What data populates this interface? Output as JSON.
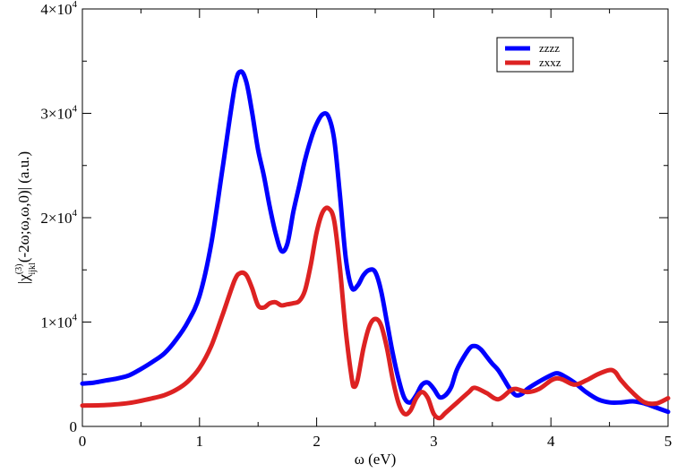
{
  "chart_data": {
    "type": "line",
    "title": "",
    "xlabel": "ω (eV)",
    "ylabel": "|χ(3)ijkl(-2ω;ω,ω,0)| (a.u.)",
    "xlim": [
      0,
      5
    ],
    "ylim": [
      0,
      40000
    ],
    "xticks": [
      0,
      1,
      2,
      3,
      4,
      5
    ],
    "xtick_labels": [
      "0",
      "1",
      "2",
      "3",
      "4",
      "5"
    ],
    "yticks": [
      0,
      10000,
      20000,
      30000,
      40000
    ],
    "ytick_labels": [
      {
        "mant": "0",
        "exp": ""
      },
      {
        "mant": "1×10",
        "exp": "4"
      },
      {
        "mant": "2×10",
        "exp": "4"
      },
      {
        "mant": "3×10",
        "exp": "4"
      },
      {
        "mant": "4×10",
        "exp": "4"
      }
    ],
    "grid": false,
    "legend_position": "top-right",
    "series": [
      {
        "name": "zzzz",
        "color": "#0000ff",
        "points": [
          [
            0,
            4100
          ],
          [
            0.1,
            4200
          ],
          [
            0.2,
            4400
          ],
          [
            0.3,
            4600
          ],
          [
            0.4,
            4900
          ],
          [
            0.5,
            5500
          ],
          [
            0.6,
            6200
          ],
          [
            0.7,
            7000
          ],
          [
            0.8,
            8300
          ],
          [
            0.9,
            10000
          ],
          [
            1.0,
            12500
          ],
          [
            1.1,
            17500
          ],
          [
            1.2,
            25000
          ],
          [
            1.3,
            32500
          ],
          [
            1.35,
            34000
          ],
          [
            1.4,
            33000
          ],
          [
            1.45,
            30000
          ],
          [
            1.5,
            26500
          ],
          [
            1.55,
            24000
          ],
          [
            1.6,
            21000
          ],
          [
            1.65,
            18500
          ],
          [
            1.7,
            16800
          ],
          [
            1.75,
            17500
          ],
          [
            1.8,
            20500
          ],
          [
            1.85,
            23000
          ],
          [
            1.9,
            25500
          ],
          [
            1.95,
            27500
          ],
          [
            2.0,
            29000
          ],
          [
            2.05,
            29900
          ],
          [
            2.1,
            29700
          ],
          [
            2.15,
            27500
          ],
          [
            2.2,
            22000
          ],
          [
            2.25,
            16000
          ],
          [
            2.3,
            13300
          ],
          [
            2.35,
            13500
          ],
          [
            2.4,
            14500
          ],
          [
            2.45,
            15000
          ],
          [
            2.5,
            14800
          ],
          [
            2.55,
            13000
          ],
          [
            2.6,
            10000
          ],
          [
            2.65,
            7000
          ],
          [
            2.7,
            4500
          ],
          [
            2.75,
            2700
          ],
          [
            2.8,
            2300
          ],
          [
            2.85,
            3000
          ],
          [
            2.9,
            4000
          ],
          [
            2.95,
            4200
          ],
          [
            3.0,
            3600
          ],
          [
            3.05,
            2800
          ],
          [
            3.1,
            3000
          ],
          [
            3.15,
            3800
          ],
          [
            3.2,
            5500
          ],
          [
            3.3,
            7400
          ],
          [
            3.35,
            7700
          ],
          [
            3.4,
            7400
          ],
          [
            3.45,
            6700
          ],
          [
            3.5,
            6000
          ],
          [
            3.55,
            5400
          ],
          [
            3.6,
            4500
          ],
          [
            3.65,
            3600
          ],
          [
            3.7,
            3000
          ],
          [
            3.75,
            3100
          ],
          [
            3.8,
            3600
          ],
          [
            3.9,
            4300
          ],
          [
            4.0,
            4900
          ],
          [
            4.05,
            5100
          ],
          [
            4.1,
            4900
          ],
          [
            4.2,
            4200
          ],
          [
            4.3,
            3300
          ],
          [
            4.4,
            2600
          ],
          [
            4.5,
            2300
          ],
          [
            4.6,
            2300
          ],
          [
            4.7,
            2400
          ],
          [
            4.8,
            2200
          ],
          [
            4.9,
            1800
          ],
          [
            5.0,
            1400
          ]
        ]
      },
      {
        "name": "zxxz",
        "color": "#dd2222",
        "points": [
          [
            0,
            2000
          ],
          [
            0.2,
            2050
          ],
          [
            0.4,
            2250
          ],
          [
            0.6,
            2700
          ],
          [
            0.7,
            3000
          ],
          [
            0.8,
            3500
          ],
          [
            0.9,
            4300
          ],
          [
            1.0,
            5600
          ],
          [
            1.1,
            7700
          ],
          [
            1.2,
            10800
          ],
          [
            1.3,
            14000
          ],
          [
            1.35,
            14700
          ],
          [
            1.4,
            14500
          ],
          [
            1.45,
            13200
          ],
          [
            1.5,
            11600
          ],
          [
            1.55,
            11400
          ],
          [
            1.6,
            11800
          ],
          [
            1.65,
            11900
          ],
          [
            1.7,
            11600
          ],
          [
            1.75,
            11700
          ],
          [
            1.8,
            11800
          ],
          [
            1.85,
            12000
          ],
          [
            1.9,
            13000
          ],
          [
            1.95,
            15500
          ],
          [
            2.0,
            18600
          ],
          [
            2.05,
            20500
          ],
          [
            2.1,
            20900
          ],
          [
            2.15,
            19700
          ],
          [
            2.2,
            15000
          ],
          [
            2.25,
            9000
          ],
          [
            2.3,
            4600
          ],
          [
            2.32,
            3800
          ],
          [
            2.35,
            4500
          ],
          [
            2.4,
            7500
          ],
          [
            2.45,
            9600
          ],
          [
            2.5,
            10300
          ],
          [
            2.55,
            9700
          ],
          [
            2.6,
            7500
          ],
          [
            2.65,
            4500
          ],
          [
            2.7,
            2200
          ],
          [
            2.75,
            1200
          ],
          [
            2.8,
            1500
          ],
          [
            2.85,
            2700
          ],
          [
            2.9,
            3300
          ],
          [
            2.95,
            2700
          ],
          [
            3.0,
            1200
          ],
          [
            3.05,
            800
          ],
          [
            3.1,
            1300
          ],
          [
            3.2,
            2300
          ],
          [
            3.3,
            3300
          ],
          [
            3.35,
            3700
          ],
          [
            3.45,
            3200
          ],
          [
            3.55,
            2600
          ],
          [
            3.65,
            3400
          ],
          [
            3.7,
            3600
          ],
          [
            3.8,
            3300
          ],
          [
            3.9,
            3600
          ],
          [
            4.0,
            4400
          ],
          [
            4.05,
            4600
          ],
          [
            4.1,
            4500
          ],
          [
            4.2,
            4000
          ],
          [
            4.3,
            4400
          ],
          [
            4.4,
            5000
          ],
          [
            4.5,
            5400
          ],
          [
            4.55,
            5200
          ],
          [
            4.6,
            4400
          ],
          [
            4.7,
            3200
          ],
          [
            4.8,
            2300
          ],
          [
            4.9,
            2200
          ],
          [
            5.0,
            2700
          ]
        ]
      }
    ]
  }
}
